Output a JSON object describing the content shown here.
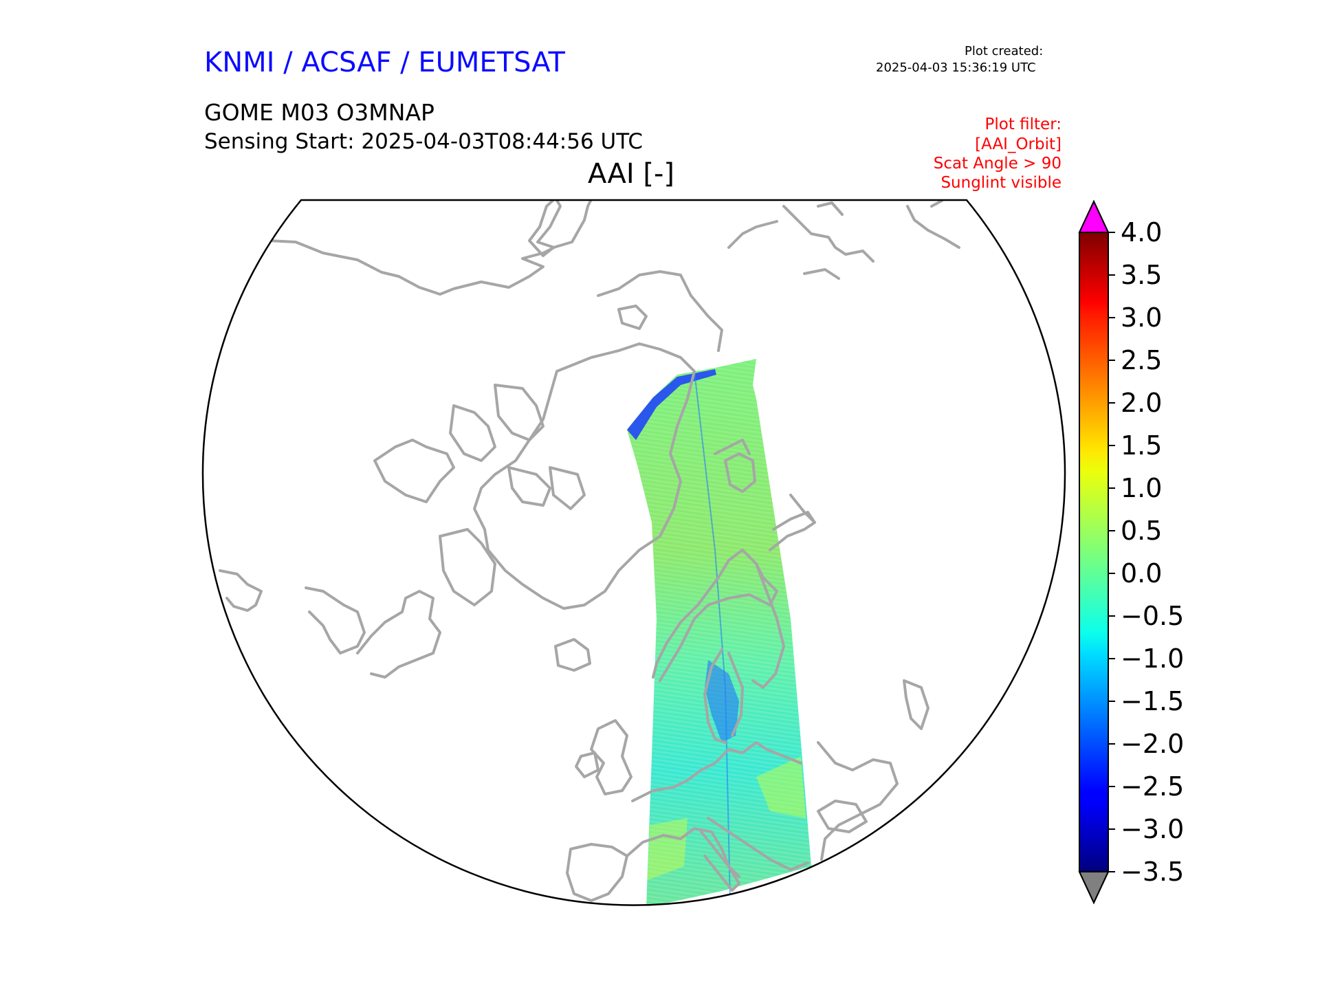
{
  "header": {
    "org": "KNMI / ACSAF / EUMETSAT",
    "created_label": "Plot created:",
    "created_value": "2025-04-03 15:36:19 UTC",
    "product": "GOME M03 O3MNAP",
    "sensing_start": "Sensing Start: 2025-04-03T08:44:56 UTC",
    "variable": "AAI [-]"
  },
  "filters": [
    "Plot filter:",
    "[AAI_Orbit]",
    "Scat Angle > 90",
    "Sunglint visible"
  ],
  "colors": {
    "header_org": "#0b0bff",
    "filter_text": "#ff0000",
    "coastline": "#a6a6a6",
    "over_color": "#ff00ff",
    "under_color": "#808080"
  },
  "colorbar": {
    "colormap": "jet",
    "vmin": -3.5,
    "vmax": 4.0,
    "extend": "both",
    "ticks": [
      {
        "value": 4.0,
        "label": "4.0"
      },
      {
        "value": 3.5,
        "label": "3.5"
      },
      {
        "value": 3.0,
        "label": "3.0"
      },
      {
        "value": 2.5,
        "label": "2.5"
      },
      {
        "value": 2.0,
        "label": "2.0"
      },
      {
        "value": 1.5,
        "label": "1.5"
      },
      {
        "value": 1.0,
        "label": "1.0"
      },
      {
        "value": 0.5,
        "label": "0.5"
      },
      {
        "value": 0.0,
        "label": "0.0"
      },
      {
        "value": -0.5,
        "label": "−0.5"
      },
      {
        "value": -1.0,
        "label": "−1.0"
      },
      {
        "value": -1.5,
        "label": "−1.5"
      },
      {
        "value": -2.0,
        "label": "−2.0"
      },
      {
        "value": -2.5,
        "label": "−2.5"
      },
      {
        "value": -3.0,
        "label": "−3.0"
      },
      {
        "value": -3.5,
        "label": "−3.5"
      }
    ]
  },
  "map": {
    "projection": "north polar stereographic",
    "swath_region": "Europe / Scandinavia / Arctic",
    "swath_dominant_aai": -0.3
  }
}
